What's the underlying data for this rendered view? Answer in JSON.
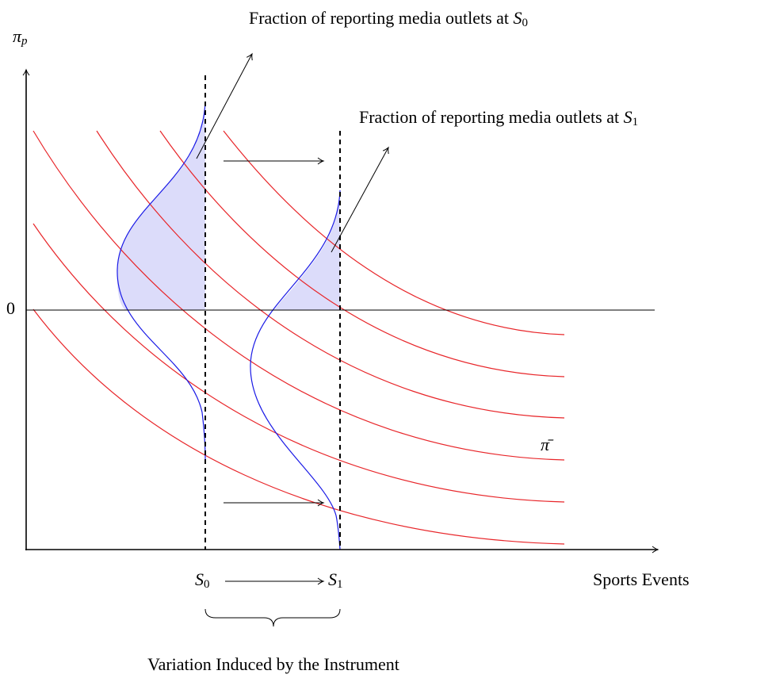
{
  "labels": {
    "y_axis": {
      "symbol": "π",
      "subscript": "p"
    },
    "zero": "0",
    "pi_bar": "π̄",
    "x_axis": "Sports Events",
    "s0": {
      "symbol": "S",
      "subscript": "0"
    },
    "s1": {
      "symbol": "S",
      "subscript": "1"
    },
    "fraction_s0": {
      "text": "Fraction of reporting media outlets at ",
      "symbol": "S",
      "subscript": "0"
    },
    "fraction_s1": {
      "text": "Fraction of reporting media outlets at ",
      "symbol": "S",
      "subscript": "1"
    },
    "brace_caption": "Variation Induced by the Instrument"
  }
}
